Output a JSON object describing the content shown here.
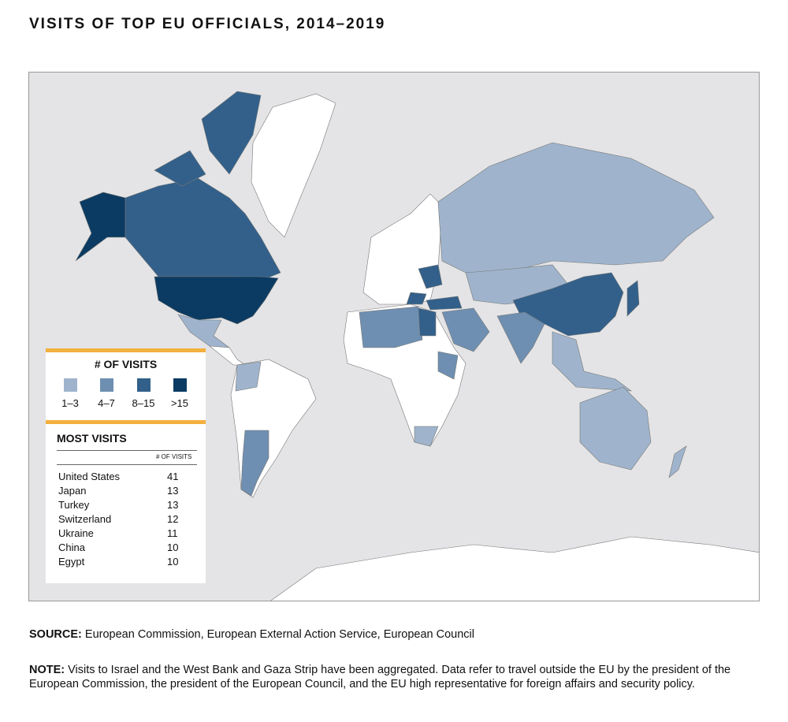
{
  "title": "VISITS OF TOP EU OFFICIALS, 2014–2019",
  "legend": {
    "title": "# OF  VISITS",
    "bins": [
      {
        "label": "1–3",
        "color": "#9fb4cc"
      },
      {
        "label": "4–7",
        "color": "#6e8fb1"
      },
      {
        "label": "8–15",
        "color": "#32608a"
      },
      {
        "label": ">15",
        "color": "#0b3b62"
      }
    ]
  },
  "most_visits": {
    "title": "MOST VISITS",
    "column_header": "# OF VISITS",
    "rows": [
      {
        "country": "United States",
        "visits": "41"
      },
      {
        "country": "Japan",
        "visits": "13"
      },
      {
        "country": "Turkey",
        "visits": "13"
      },
      {
        "country": "Switzerland",
        "visits": "12"
      },
      {
        "country": "Ukraine",
        "visits": "11"
      },
      {
        "country": "China",
        "visits": "10"
      },
      {
        "country": "Egypt",
        "visits": "10"
      }
    ]
  },
  "map_colors": {
    "ocean": "#e4e4e6",
    "no_visits": "#ffffff",
    "accent": "#f3b03e"
  },
  "source": {
    "label": "SOURCE:",
    "text": " European Commission, European External Action Service, European Council"
  },
  "note": {
    "label": "NOTE:",
    "text": " Visits to Israel and the West Bank and Gaza Strip have been aggregated. Data refer to travel outside the EU by the president of the European Commission, the president of the European Council, and the EU high representative for foreign affairs and security policy."
  }
}
